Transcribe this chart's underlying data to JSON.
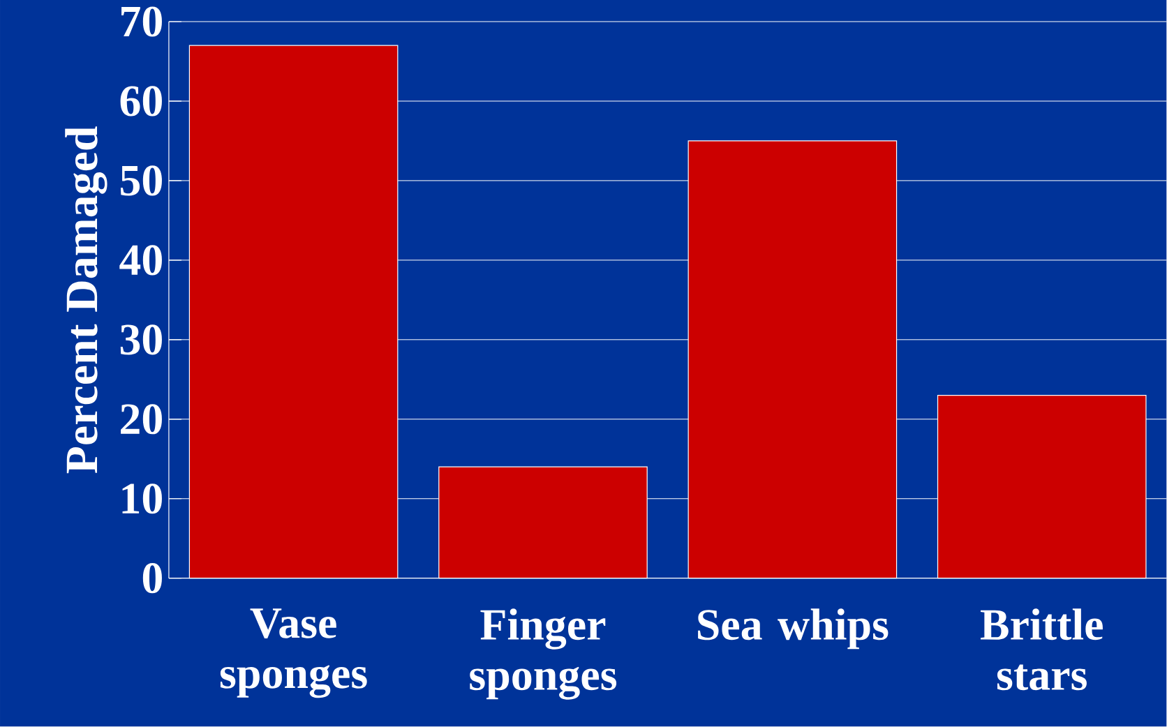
{
  "chart_data": {
    "type": "bar",
    "ylabel": "Percent Damaged",
    "categories": [
      "Vase sponges",
      "Finger sponges",
      "Sea whips",
      "Brittle stars"
    ],
    "values": [
      67,
      14,
      55,
      23
    ],
    "color": "#cc0000",
    "ylim": [
      0,
      70
    ],
    "yticks": [
      0,
      10,
      20,
      30,
      40,
      50,
      60,
      70
    ],
    "grid": "y"
  }
}
